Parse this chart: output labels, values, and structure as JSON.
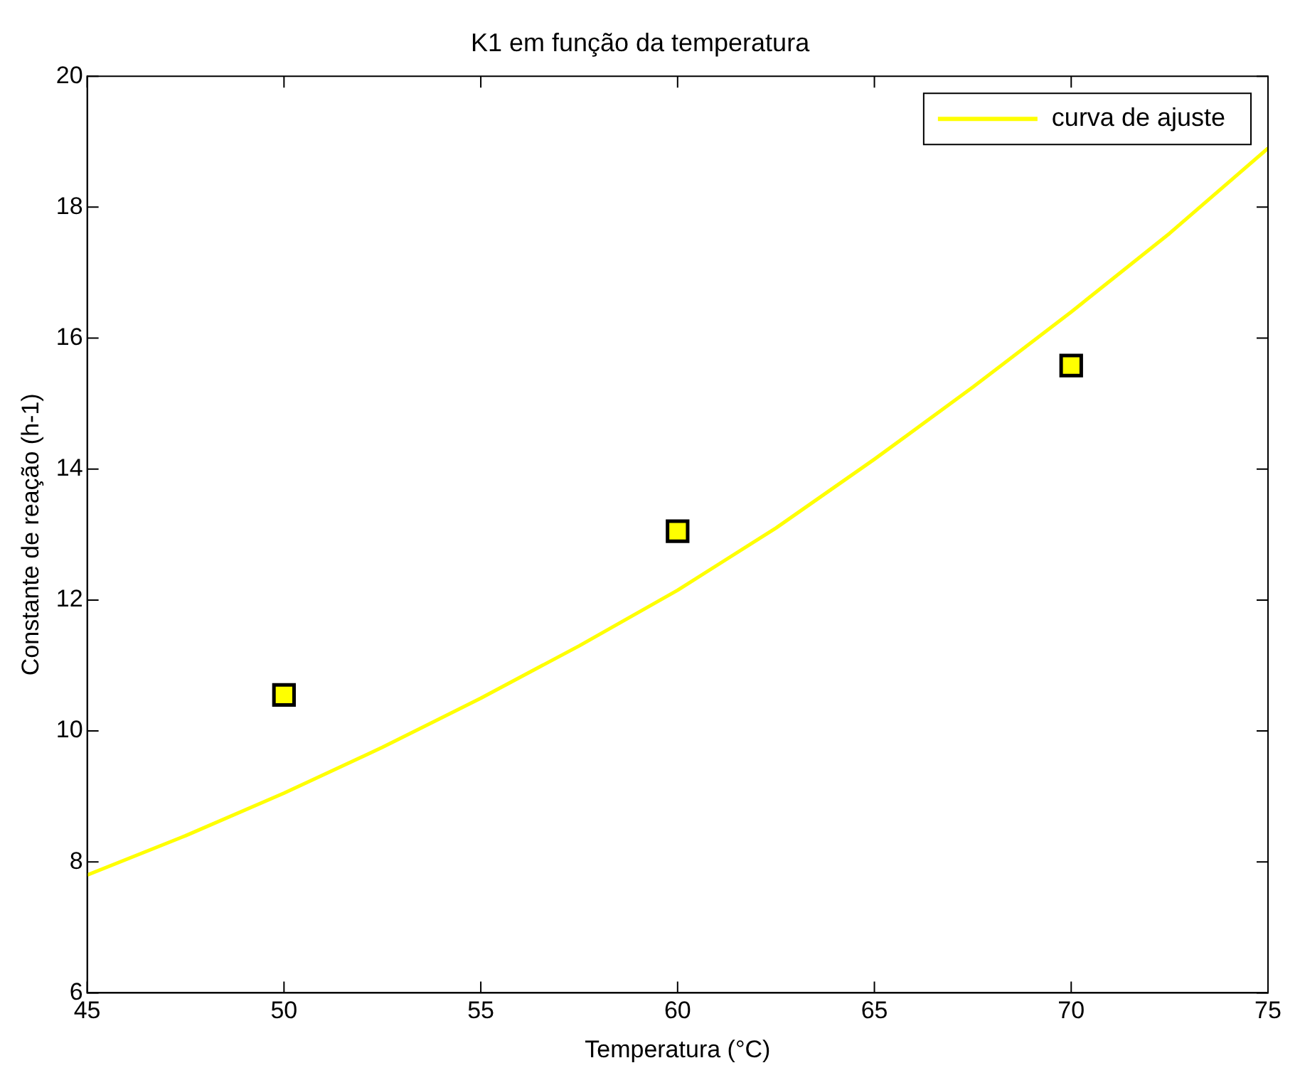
{
  "chart_data": {
    "type": "scatter",
    "title": "K1 em função da temperatura",
    "xlabel": "Temperatura (°C)",
    "ylabel": "Constante de reação (h-1)",
    "xlim": [
      45,
      75
    ],
    "xticks": [
      45,
      50,
      55,
      60,
      65,
      70,
      75
    ],
    "ylim": [
      6,
      20
    ],
    "yticks": [
      6,
      8,
      10,
      12,
      14,
      16,
      18,
      20
    ],
    "grid": false,
    "legend": "top right",
    "series": [
      {
        "name": "curva de ajuste",
        "type": "line",
        "color": "#ffff00",
        "marker": "none",
        "line_style": "solid",
        "x": [
          45,
          47.5,
          50,
          52.5,
          55,
          57.5,
          60,
          62.5,
          65,
          67.5,
          70,
          72.5,
          75
        ],
        "values": [
          7.8,
          8.4,
          9.05,
          9.75,
          10.5,
          11.3,
          12.15,
          13.1,
          14.15,
          15.25,
          16.4,
          17.6,
          18.9
        ]
      },
      {
        "type": "scatter",
        "color": "#ffff00",
        "marker": "square",
        "x": [
          50,
          60,
          70
        ],
        "values": [
          10.55,
          13.05,
          15.58
        ]
      }
    ]
  }
}
